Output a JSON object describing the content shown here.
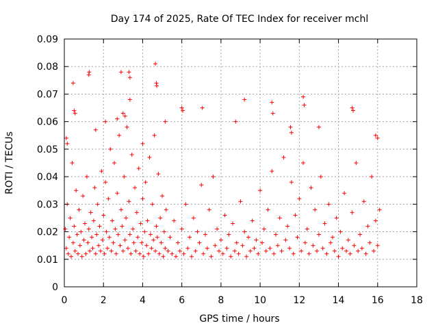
{
  "chart_data": {
    "type": "scatter",
    "title": "Day 174 of 2025, Rate Of TEC Index for receiver mchl",
    "xlabel": "GPS time / hours",
    "ylabel": "ROTI / TECUs",
    "xlim": [
      0,
      18
    ],
    "ylim": [
      0,
      0.09
    ],
    "x_ticks": [
      "0",
      "2",
      "4",
      "6",
      "8",
      "10",
      "12",
      "14",
      "16",
      "18"
    ],
    "y_ticks": [
      "0",
      "0.01",
      "0.02",
      "0.03",
      "0.04",
      "0.05",
      "0.06",
      "0.07",
      "0.08",
      "0.09"
    ],
    "grid": true,
    "marker": "+",
    "colors": {
      "points": "#ff0000",
      "grid": "#a0a0a0",
      "axes": "#000000"
    },
    "series": [
      {
        "values_note_x_hours_y_tecus": true,
        "x": [
          0.05,
          0.1,
          0.15,
          0.2,
          0.25,
          0.3,
          0.35,
          0.4,
          0.45,
          0.5,
          0.55,
          0.6,
          0.65,
          0.7,
          0.75,
          0.8,
          0.85,
          0.9,
          0.95,
          1.0,
          1.05,
          1.1,
          1.15,
          1.2,
          1.25,
          1.3,
          1.35,
          1.4,
          1.45,
          1.5,
          1.55,
          1.6,
          1.65,
          1.7,
          1.75,
          1.8,
          1.85,
          1.9,
          1.95,
          2.0,
          2.05,
          2.1,
          2.15,
          2.2,
          2.25,
          2.3,
          2.35,
          2.4,
          2.45,
          2.5,
          2.55,
          2.6,
          2.65,
          2.7,
          2.75,
          2.8,
          2.85,
          2.9,
          2.95,
          3.0,
          3.05,
          3.1,
          3.15,
          3.2,
          3.25,
          3.3,
          3.35,
          3.4,
          3.45,
          3.5,
          3.55,
          3.6,
          3.65,
          3.7,
          3.75,
          3.8,
          3.85,
          3.9,
          3.95,
          4.0,
          4.05,
          4.1,
          4.15,
          4.2,
          4.25,
          4.3,
          4.35,
          4.4,
          4.45,
          4.5,
          4.55,
          4.6,
          4.65,
          4.7,
          4.75,
          4.8,
          4.85,
          4.9,
          4.95,
          5.0,
          5.05,
          5.1,
          5.15,
          5.2,
          5.3,
          5.4,
          5.5,
          5.6,
          5.7,
          5.8,
          5.9,
          6.0,
          6.1,
          6.2,
          6.3,
          6.4,
          6.5,
          6.6,
          6.7,
          6.8,
          6.9,
          7.0,
          7.1,
          7.2,
          7.3,
          7.4,
          7.5,
          7.6,
          7.7,
          7.8,
          7.9,
          8.0,
          8.1,
          8.2,
          8.3,
          8.4,
          8.5,
          8.6,
          8.7,
          8.8,
          8.9,
          9.0,
          9.1,
          9.2,
          9.3,
          9.4,
          9.5,
          9.6,
          9.7,
          9.8,
          9.9,
          10.0,
          10.1,
          10.2,
          10.3,
          10.4,
          10.5,
          10.6,
          10.7,
          10.8,
          10.9,
          11.0,
          11.1,
          11.2,
          11.3,
          11.4,
          11.5,
          11.6,
          11.7,
          11.8,
          11.9,
          12.0,
          12.1,
          12.2,
          12.3,
          12.4,
          12.5,
          12.6,
          12.7,
          12.8,
          12.9,
          13.0,
          13.1,
          13.2,
          13.3,
          13.4,
          13.5,
          13.6,
          13.7,
          13.8,
          13.9,
          14.0,
          14.1,
          14.2,
          14.3,
          14.4,
          14.5,
          14.6,
          14.7,
          14.8,
          14.9,
          15.0,
          15.1,
          15.2,
          15.3,
          15.4,
          15.5,
          15.6,
          15.7,
          15.8,
          15.9,
          16.0,
          16.1,
          1.25,
          1.27,
          2.9,
          3.0,
          3.3,
          3.35,
          4.65,
          4.7,
          4.72,
          3.35,
          12.2,
          12.25,
          14.7,
          14.75,
          6.0,
          6.05,
          5.15,
          9.2,
          10.6,
          10.65,
          0.5,
          0.55,
          0.45,
          3.1,
          2.7,
          2.1,
          0.1,
          0.15,
          7.05,
          8.75,
          11.55,
          11.6,
          15.9,
          16.0,
          4.0,
          1.6,
          13.0
        ],
        "y": [
          0.021,
          0.014,
          0.03,
          0.012,
          0.018,
          0.025,
          0.011,
          0.045,
          0.016,
          0.022,
          0.013,
          0.035,
          0.019,
          0.012,
          0.028,
          0.015,
          0.02,
          0.011,
          0.033,
          0.017,
          0.023,
          0.012,
          0.04,
          0.016,
          0.021,
          0.013,
          0.027,
          0.018,
          0.014,
          0.024,
          0.036,
          0.012,
          0.019,
          0.03,
          0.015,
          0.022,
          0.013,
          0.042,
          0.017,
          0.026,
          0.012,
          0.038,
          0.02,
          0.014,
          0.032,
          0.018,
          0.05,
          0.013,
          0.024,
          0.016,
          0.045,
          0.021,
          0.012,
          0.034,
          0.019,
          0.055,
          0.015,
          0.028,
          0.022,
          0.013,
          0.04,
          0.017,
          0.025,
          0.058,
          0.014,
          0.031,
          0.019,
          0.012,
          0.048,
          0.021,
          0.016,
          0.036,
          0.013,
          0.027,
          0.018,
          0.043,
          0.012,
          0.023,
          0.016,
          0.032,
          0.011,
          0.02,
          0.038,
          0.015,
          0.024,
          0.012,
          0.047,
          0.019,
          0.014,
          0.03,
          0.017,
          0.055,
          0.013,
          0.022,
          0.018,
          0.041,
          0.012,
          0.025,
          0.016,
          0.033,
          0.011,
          0.02,
          0.014,
          0.028,
          0.013,
          0.018,
          0.012,
          0.024,
          0.011,
          0.016,
          0.013,
          0.021,
          0.012,
          0.03,
          0.014,
          0.018,
          0.011,
          0.025,
          0.013,
          0.02,
          0.016,
          0.037,
          0.012,
          0.019,
          0.014,
          0.028,
          0.011,
          0.04,
          0.015,
          0.021,
          0.013,
          0.017,
          0.012,
          0.026,
          0.014,
          0.019,
          0.011,
          0.023,
          0.013,
          0.016,
          0.012,
          0.031,
          0.015,
          0.02,
          0.011,
          0.018,
          0.013,
          0.024,
          0.014,
          0.017,
          0.012,
          0.035,
          0.016,
          0.021,
          0.013,
          0.028,
          0.014,
          0.042,
          0.012,
          0.019,
          0.015,
          0.025,
          0.013,
          0.047,
          0.017,
          0.022,
          0.014,
          0.038,
          0.012,
          0.026,
          0.018,
          0.032,
          0.013,
          0.045,
          0.016,
          0.021,
          0.012,
          0.036,
          0.015,
          0.028,
          0.013,
          0.019,
          0.04,
          0.014,
          0.023,
          0.012,
          0.03,
          0.016,
          0.018,
          0.013,
          0.025,
          0.011,
          0.02,
          0.014,
          0.034,
          0.013,
          0.017,
          0.012,
          0.027,
          0.015,
          0.045,
          0.013,
          0.019,
          0.014,
          0.031,
          0.012,
          0.022,
          0.016,
          0.04,
          0.013,
          0.024,
          0.015,
          0.028,
          0.077,
          0.078,
          0.078,
          0.063,
          0.078,
          0.076,
          0.081,
          0.074,
          0.073,
          0.068,
          0.069,
          0.066,
          0.065,
          0.064,
          0.065,
          0.064,
          0.06,
          0.068,
          0.067,
          0.063,
          0.064,
          0.063,
          0.074,
          0.062,
          0.061,
          0.06,
          0.054,
          0.052,
          0.065,
          0.06,
          0.058,
          0.056,
          0.055,
          0.054,
          0.052,
          0.057,
          0.058
        ]
      }
    ]
  }
}
